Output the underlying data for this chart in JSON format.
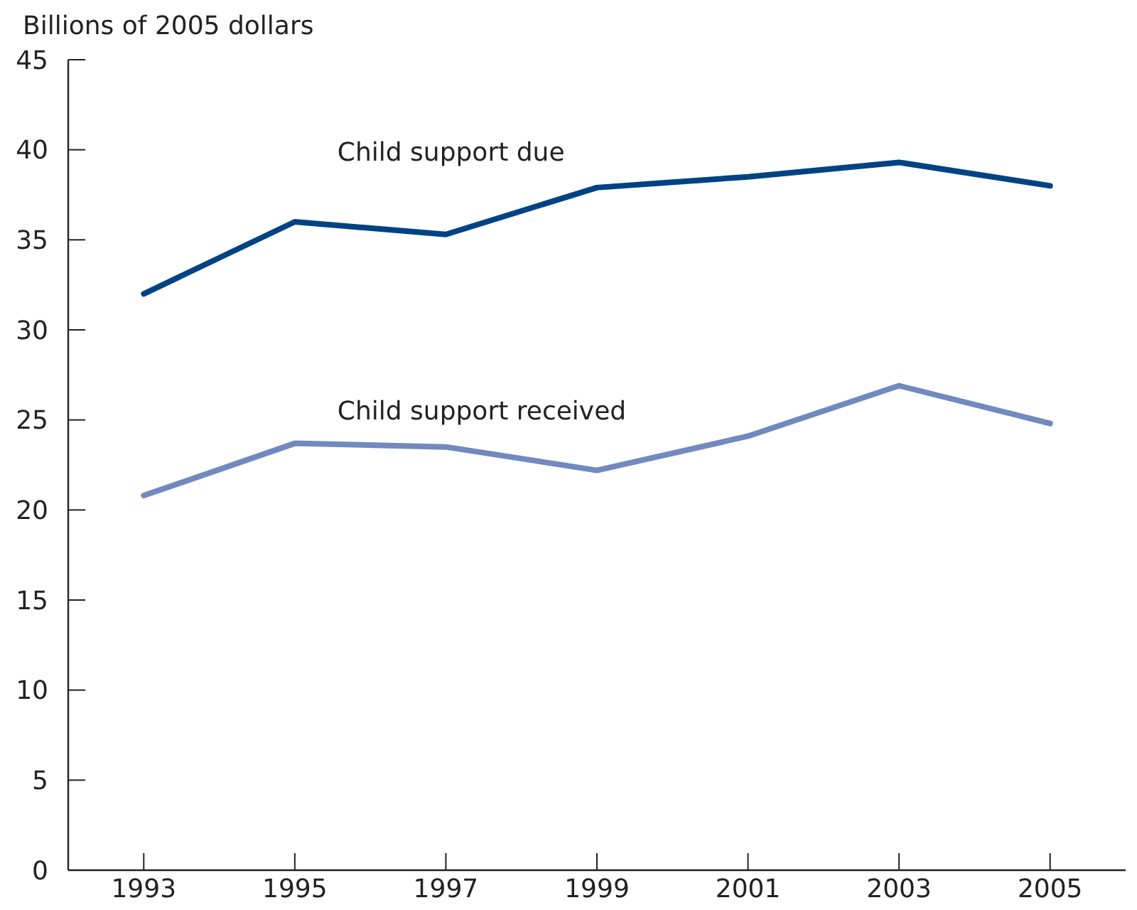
{
  "chart_data": {
    "type": "line",
    "ylabel": "Billions of 2005 dollars",
    "x": [
      1993,
      1995,
      1997,
      1999,
      2001,
      2003,
      2005
    ],
    "xlim": [
      1992,
      2006
    ],
    "xticks": [
      1993,
      1995,
      1997,
      1999,
      2001,
      2003,
      2005
    ],
    "ylim": [
      0,
      45
    ],
    "yticks": [
      0,
      5,
      10,
      15,
      20,
      25,
      30,
      35,
      40,
      45
    ],
    "grid": false,
    "marker": "none",
    "line_style": "solid",
    "series": [
      {
        "name": "Child support due",
        "color": "#004384",
        "values": [
          32.0,
          36.0,
          35.3,
          37.9,
          38.5,
          39.3,
          38.0
        ]
      },
      {
        "name": "Child support received",
        "color": "#7189bf",
        "values": [
          20.8,
          23.7,
          23.5,
          22.2,
          24.1,
          26.9,
          24.8
        ]
      }
    ]
  }
}
